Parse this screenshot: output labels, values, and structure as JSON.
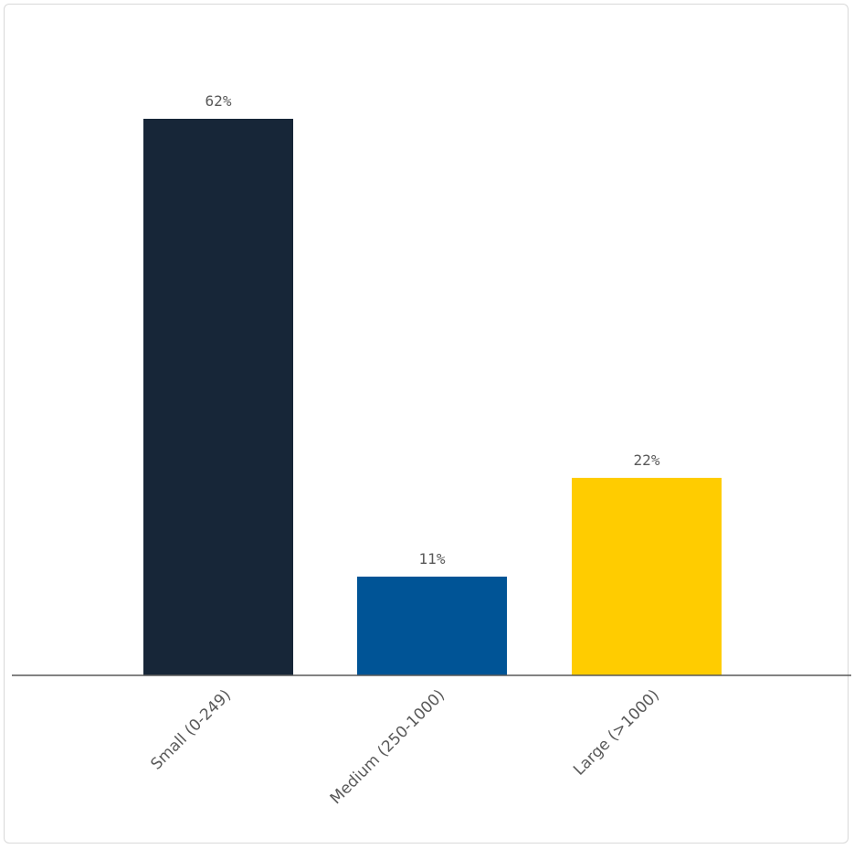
{
  "chart_data": {
    "type": "bar",
    "title": "",
    "xlabel": "",
    "ylabel": "",
    "categories": [
      "Small (0-249)",
      "Medium (250-1000)",
      "Large (>1000)"
    ],
    "values": [
      62,
      11,
      22
    ],
    "value_labels": [
      "62%",
      "11%",
      "22%"
    ],
    "colors": [
      "#172638",
      "#005496",
      "#ffcc00"
    ],
    "ylim": [
      0,
      75
    ],
    "grid": false,
    "legend": "none"
  }
}
